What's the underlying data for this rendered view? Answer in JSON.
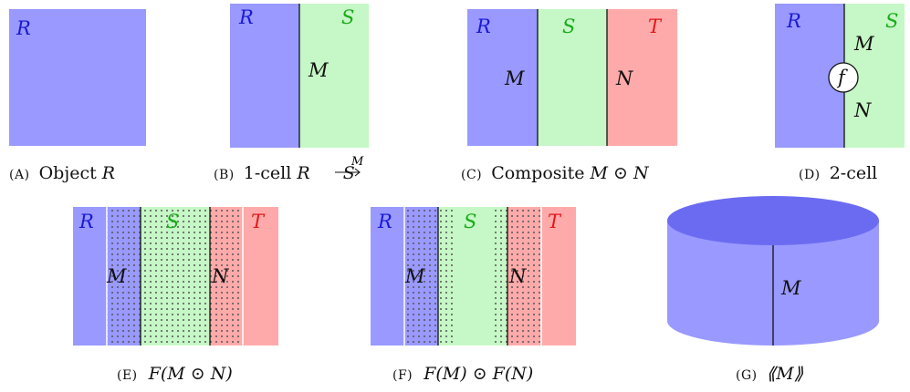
{
  "colors": {
    "R": "#9999ff",
    "S": "#c6f7c6",
    "T": "#ffaaaa",
    "label_R": "#1a1ad6",
    "label_S": "#1aab1a",
    "label_T": "#e01a1a",
    "line": "#111111",
    "dots": "#555555"
  },
  "labels": {
    "R": "R",
    "S": "S",
    "T": "T",
    "M": "M",
    "N": "N",
    "f": "f"
  },
  "captions": {
    "a": {
      "tag": "(A)",
      "text": "Object ",
      "math": "R"
    },
    "b": {
      "tag": "(B)",
      "text": "1-cell ",
      "math_from": "R",
      "arrow_label": "M",
      "math_to": "S"
    },
    "c": {
      "tag": "(C)",
      "text": "Composite ",
      "math": "M ⊙ N"
    },
    "d": {
      "tag": "(D)",
      "text": "2-cell"
    },
    "e": {
      "tag": "(E)",
      "math": "F(M ⊙ N)"
    },
    "f": {
      "tag": "(F)",
      "math": "F(M) ⊙ F(N)"
    },
    "g": {
      "tag": "(G)",
      "math": "⟪M⟫"
    }
  }
}
